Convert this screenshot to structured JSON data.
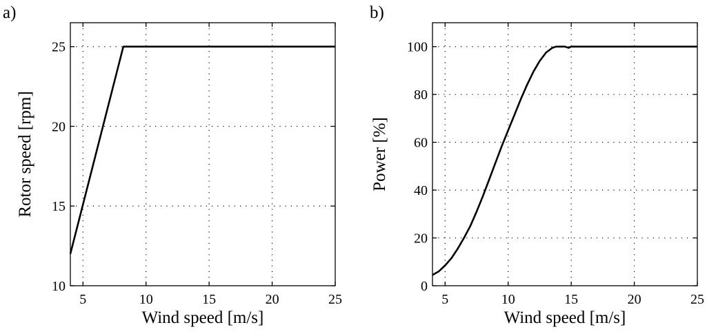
{
  "chart_data": [
    {
      "type": "line",
      "panel_label": "a)",
      "xlabel": "Wind speed [m/s]",
      "ylabel": "Rotor speed [rpm]",
      "xlim": [
        4,
        25
      ],
      "ylim": [
        10,
        26.5
      ],
      "xticks": [
        5,
        10,
        15,
        20,
        25
      ],
      "yticks": [
        10,
        15,
        20,
        25
      ],
      "grid": true,
      "series": [
        {
          "color": "#000000",
          "x": [
            4,
            8.2,
            8.4,
            25
          ],
          "y": [
            12,
            25,
            25,
            25
          ]
        }
      ]
    },
    {
      "type": "line",
      "panel_label": "b)",
      "xlabel": "Wind speed [m/s]",
      "ylabel": "Power [%]",
      "xlim": [
        4,
        25
      ],
      "ylim": [
        0,
        110
      ],
      "xticks": [
        5,
        10,
        15,
        20,
        25
      ],
      "yticks": [
        0,
        20,
        40,
        60,
        80,
        100
      ],
      "grid": true,
      "series": [
        {
          "color": "#000000",
          "x": [
            4,
            4.5,
            5,
            5.5,
            6,
            6.5,
            7,
            7.5,
            8,
            8.5,
            9,
            9.5,
            10,
            10.5,
            11,
            11.5,
            12,
            12.5,
            13,
            13.5,
            13.8,
            14.2,
            14.5,
            14.8,
            15,
            25
          ],
          "y": [
            4.5,
            6,
            8.5,
            11.5,
            15.5,
            20,
            25,
            31,
            37.5,
            44.5,
            51.5,
            58.5,
            65,
            71.5,
            78,
            84,
            89.5,
            94,
            97.5,
            99.5,
            100,
            100,
            100,
            99.5,
            100,
            100
          ]
        }
      ]
    }
  ]
}
